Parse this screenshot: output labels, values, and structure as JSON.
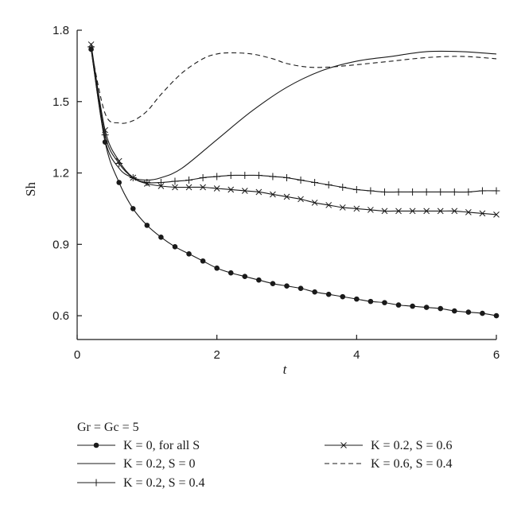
{
  "chart_data": {
    "type": "line",
    "ylabel": "Sh",
    "xlabel": "t",
    "xlim": [
      0,
      6
    ],
    "ylim": [
      0.5,
      1.8
    ],
    "x_ticks": [
      0,
      2,
      4,
      6
    ],
    "y_ticks": [
      0.6,
      0.9,
      1.2,
      1.5,
      1.8
    ],
    "x_tick_labels": [
      "0",
      "2",
      "4",
      "6"
    ],
    "y_tick_labels": [
      "0.6",
      "0.9",
      "1.2",
      "1.5",
      "1.8"
    ],
    "grid": false,
    "legend_header": "Gr = Gc = 5",
    "legend_placement": "below",
    "series": [
      {
        "name": "K = 0, for all S",
        "marker": "dot",
        "dash": "solid",
        "x": [
          0.2,
          0.4,
          0.6,
          0.8,
          1.0,
          1.2,
          1.4,
          1.6,
          1.8,
          2.0,
          2.2,
          2.4,
          2.6,
          2.8,
          3.0,
          3.2,
          3.4,
          3.6,
          3.8,
          4.0,
          4.2,
          4.4,
          4.6,
          4.8,
          5.0,
          5.2,
          5.4,
          5.6,
          5.8,
          6.0
        ],
        "y": [
          1.72,
          1.33,
          1.16,
          1.05,
          0.98,
          0.93,
          0.89,
          0.86,
          0.83,
          0.8,
          0.78,
          0.765,
          0.75,
          0.735,
          0.725,
          0.715,
          0.7,
          0.69,
          0.68,
          0.67,
          0.66,
          0.655,
          0.645,
          0.64,
          0.635,
          0.63,
          0.62,
          0.615,
          0.61,
          0.6
        ]
      },
      {
        "name": "K = 0.2, S = 0",
        "marker": "none",
        "dash": "solid",
        "x": [
          0.2,
          0.4,
          0.6,
          0.8,
          1.0,
          1.2,
          1.5,
          2.0,
          2.5,
          3.0,
          3.5,
          4.0,
          4.5,
          5.0,
          5.5,
          6.0
        ],
        "y": [
          1.72,
          1.34,
          1.22,
          1.18,
          1.17,
          1.18,
          1.22,
          1.34,
          1.46,
          1.56,
          1.63,
          1.67,
          1.69,
          1.71,
          1.71,
          1.7
        ]
      },
      {
        "name": "K = 0.2, S = 0.4",
        "marker": "plus",
        "dash": "solid",
        "x": [
          0.2,
          0.4,
          0.6,
          0.8,
          1.0,
          1.2,
          1.4,
          1.6,
          1.8,
          2.0,
          2.2,
          2.4,
          2.6,
          2.8,
          3.0,
          3.2,
          3.4,
          3.6,
          3.8,
          4.0,
          4.2,
          4.4,
          4.6,
          4.8,
          5.0,
          5.2,
          5.4,
          5.6,
          5.8,
          6.0
        ],
        "y": [
          1.73,
          1.36,
          1.24,
          1.18,
          1.16,
          1.16,
          1.165,
          1.17,
          1.18,
          1.185,
          1.19,
          1.19,
          1.19,
          1.185,
          1.18,
          1.17,
          1.16,
          1.15,
          1.14,
          1.13,
          1.125,
          1.12,
          1.12,
          1.12,
          1.12,
          1.12,
          1.12,
          1.12,
          1.125,
          1.125
        ]
      },
      {
        "name": "K = 0.2, S = 0.6",
        "marker": "cross",
        "dash": "solid",
        "x": [
          0.2,
          0.4,
          0.6,
          0.8,
          1.0,
          1.2,
          1.4,
          1.6,
          1.8,
          2.0,
          2.2,
          2.4,
          2.6,
          2.8,
          3.0,
          3.2,
          3.4,
          3.6,
          3.8,
          4.0,
          4.2,
          4.4,
          4.6,
          4.8,
          5.0,
          5.2,
          5.4,
          5.6,
          5.8,
          6.0
        ],
        "y": [
          1.74,
          1.38,
          1.25,
          1.18,
          1.155,
          1.145,
          1.14,
          1.14,
          1.14,
          1.135,
          1.13,
          1.125,
          1.12,
          1.11,
          1.1,
          1.09,
          1.075,
          1.065,
          1.055,
          1.05,
          1.045,
          1.04,
          1.04,
          1.04,
          1.04,
          1.04,
          1.04,
          1.035,
          1.03,
          1.025
        ]
      },
      {
        "name": "K = 0.6, S = 0.4",
        "marker": "none",
        "dash": "dashed",
        "x": [
          0.2,
          0.4,
          0.6,
          0.8,
          1.0,
          1.2,
          1.5,
          1.8,
          2.0,
          2.2,
          2.5,
          2.8,
          3.0,
          3.3,
          3.6,
          4.0,
          4.5,
          5.0,
          5.5,
          6.0
        ],
        "y": [
          1.72,
          1.45,
          1.41,
          1.42,
          1.46,
          1.53,
          1.62,
          1.68,
          1.7,
          1.705,
          1.7,
          1.68,
          1.66,
          1.645,
          1.645,
          1.655,
          1.67,
          1.685,
          1.69,
          1.68
        ]
      }
    ]
  }
}
